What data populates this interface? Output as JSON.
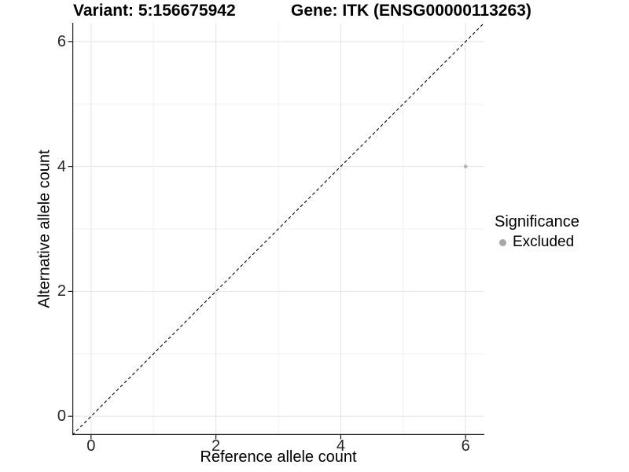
{
  "chart_data": {
    "type": "scatter",
    "title_variant": "Variant: 5:156675942",
    "title_gene": "Gene: ITK (ENSG00000113263)",
    "xlabel": "Reference allele count",
    "ylabel": "Alternative allele count",
    "xlim": [
      -0.3,
      6.3
    ],
    "ylim": [
      -0.3,
      6.3
    ],
    "ticks": {
      "values": [
        0,
        2,
        4,
        6
      ],
      "labels": [
        "0",
        "2",
        "4",
        "6"
      ],
      "minor": [
        1,
        3,
        5
      ]
    },
    "grid": {
      "major_color": "#e4e4e4",
      "minor_color": "#f1f1f1",
      "background": "#ffffff"
    },
    "identity_line": {
      "style": "dashed",
      "slope": 1,
      "intercept": 0,
      "color": "#000000"
    },
    "series": [
      {
        "name": "Excluded",
        "color": "#b5b5b5",
        "points": [
          {
            "x": 6,
            "y": 4
          }
        ]
      }
    ],
    "legend": {
      "title": "Significance",
      "position": "right",
      "key_color": "#a8a8a8"
    },
    "point_radius": 2.4,
    "axis_color": "#1a1a1a"
  }
}
